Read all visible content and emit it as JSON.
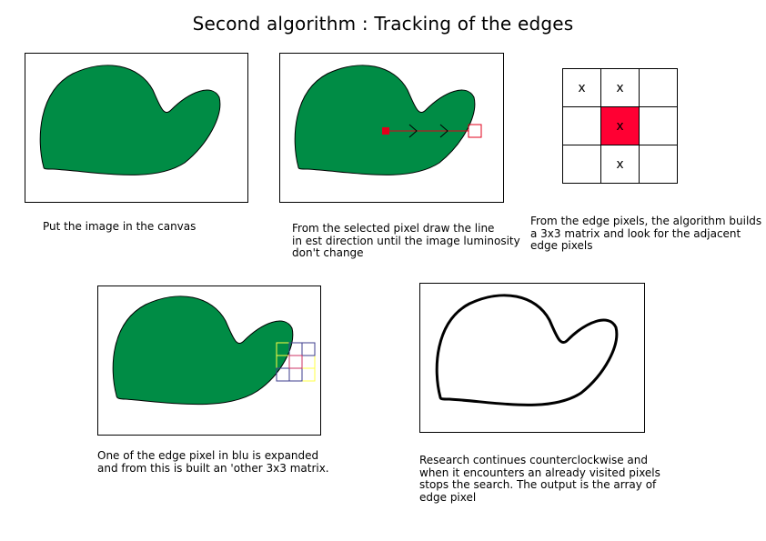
{
  "title": "Second algorithm : Tracking of the edges",
  "captions": {
    "step1": "Put the image in the canvas",
    "step2": "From the selected pixel draw the line\nin est direction until the image luminosity\ndon't change",
    "step3": "From the edge pixels, the algorithm builds\na 3x3 matrix and look for the adjacent\nedge pixels",
    "step4": "One of the edge pixel  in blu is expanded\nand from this is built an 'other 3x3 matrix.",
    "step5": "Research continues counterclockwise and\nwhen it encounters an already visited pixels\nstops the search. The output is the array of\nedge pixel"
  },
  "matrix": {
    "cells": [
      "x",
      "x",
      "",
      "",
      "x",
      "",
      "",
      "x",
      ""
    ],
    "center_color": "#ff0033"
  },
  "colors": {
    "shape_fill": "#008c45",
    "scan_line": "#e0001b",
    "yellow_grid": "#ffff44",
    "blue_grid": "#3c3c8c"
  }
}
